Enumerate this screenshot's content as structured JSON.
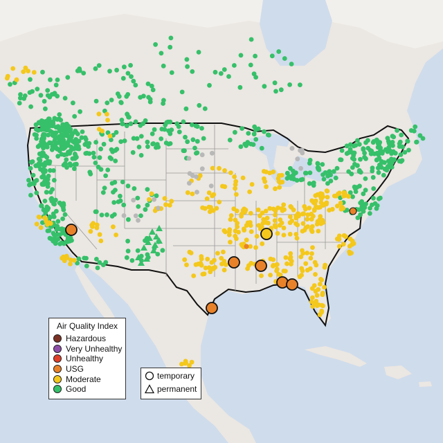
{
  "colors": {
    "water": "#cfdcec",
    "land": "#ebe7e2",
    "land_light": "#f3f1ee",
    "hazardous": "#7b3225",
    "very_unhealthy": "#8e4ea8",
    "unhealthy": "#e04028",
    "usg": "#e8822a",
    "moderate": "#f4c81c",
    "good": "#36c06a",
    "no_data": "#b8b8b8"
  },
  "legend": {
    "title": "Air Quality Index",
    "items": [
      {
        "label": "Hazardous",
        "color": "#7b3225"
      },
      {
        "label": "Very Unhealthy",
        "color": "#8e4ea8"
      },
      {
        "label": "Unhealthy",
        "color": "#e04028"
      },
      {
        "label": "USG",
        "color": "#e8822a"
      },
      {
        "label": "Moderate",
        "color": "#f4c81c"
      },
      {
        "label": "Good",
        "color": "#36c06a"
      }
    ]
  },
  "type_legend": {
    "temporary": "temporary",
    "permanent": "permanent"
  },
  "marker_icons": {
    "temporary": "circle-icon",
    "permanent": "triangle-icon"
  },
  "large_monitors_category": [
    "usg",
    "usg",
    "moderate",
    "usg",
    "usg",
    "usg",
    "usg",
    "usg"
  ]
}
